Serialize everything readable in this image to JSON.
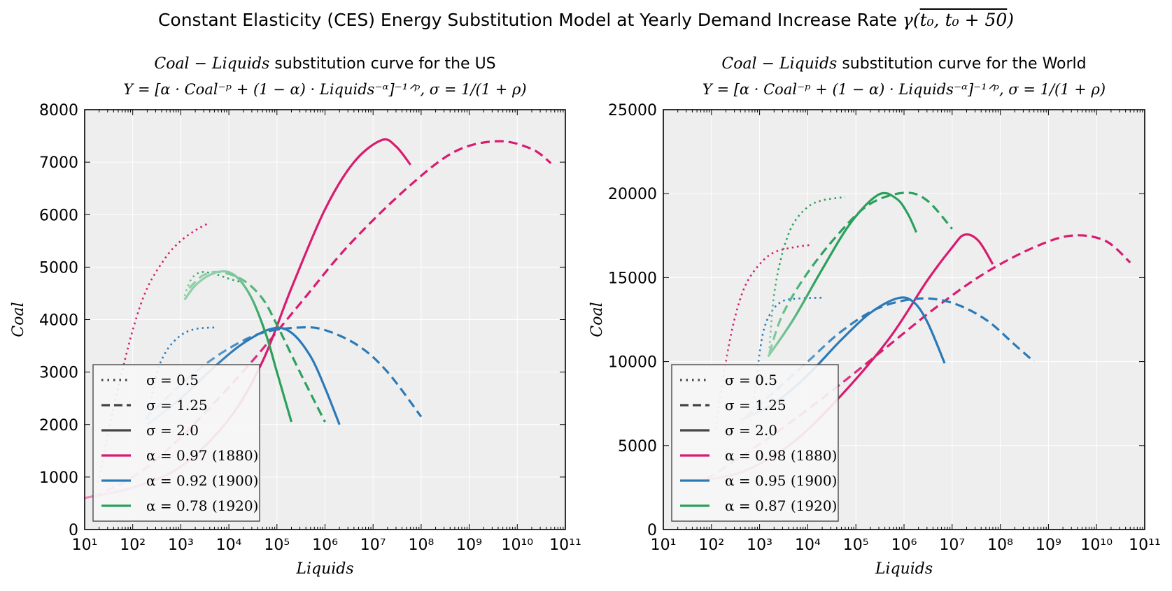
{
  "figure": {
    "suptitle_text": "Constant Elasticity (CES) Energy Substitution Model at Yearly Demand Increase Rate ",
    "suptitle_math": "γ(",
    "suptitle_math_over": "t₀, t₀ + 50",
    "suptitle_math_end": ")"
  },
  "colors": {
    "alpha_1880": "#d81b70",
    "alpha_1900": "#2a7ab8",
    "alpha_1920": "#2aa05c",
    "alpha_1880_light": "#ee8dbb",
    "alpha_1900_light": "#94c1e2",
    "alpha_1920_light": "#8fd0a8",
    "background": "#eeeeee"
  },
  "chart_data": [
    {
      "type": "line",
      "title_math": "Coal − Liquids",
      "title_text": " substitution curve for the US",
      "formula": "Y = [α · Coal⁻ᵖ + (1 − α) · Liquids⁻ᵅ]⁻¹ᐟᵖ, σ = 1/(1 + ρ)",
      "xlabel": "Liquids",
      "ylabel": "Coal",
      "xscale": "log",
      "xlim": [
        10,
        100000000000
      ],
      "ylim": [
        0,
        8000
      ],
      "xticks": [
        "10¹",
        "10²",
        "10³",
        "10⁴",
        "10⁵",
        "10⁶",
        "10⁷",
        "10⁸",
        "10⁹",
        "10¹⁰",
        "10¹¹"
      ],
      "yticks": [
        "0",
        "1000",
        "2000",
        "3000",
        "4000",
        "5000",
        "6000",
        "7000",
        "8000"
      ],
      "grid": true,
      "legend_position": "lower-left",
      "legend": [
        {
          "label": "σ = 0.5",
          "style": "dotted"
        },
        {
          "label": "σ = 1.25",
          "style": "dashed"
        },
        {
          "label": "σ = 2.0",
          "style": "solid"
        },
        {
          "label": "α = 0.97 (1880)",
          "color": "#d81b70"
        },
        {
          "label": "α = 0.92 (1900)",
          "color": "#2a7ab8"
        },
        {
          "label": "α = 0.78 (1920)",
          "color": "#2aa05c"
        }
      ],
      "series": [
        {
          "alpha": "1880",
          "sigma": "0.5",
          "style": "dotted",
          "points": [
            [
              14,
              620
            ],
            [
              20,
              1000
            ],
            [
              30,
              1800
            ],
            [
              50,
              2700
            ],
            [
              100,
              3800
            ],
            [
              200,
              4600
            ],
            [
              500,
              5200
            ],
            [
              1000,
              5500
            ],
            [
              2000,
              5700
            ],
            [
              4000,
              5850
            ]
          ]
        },
        {
          "alpha": "1880",
          "sigma": "1.25",
          "style": "dashed",
          "points": [
            [
              15,
              620
            ],
            [
              100,
              1000
            ],
            [
              500,
              1500
            ],
            [
              3000,
              2200
            ],
            [
              30000,
              3200
            ],
            [
              300000,
              4300
            ],
            [
              3000000,
              5400
            ],
            [
              50000000,
              6500
            ],
            [
              500000000,
              7200
            ],
            [
              4000000000,
              7400
            ],
            [
              20000000000,
              7250
            ],
            [
              50000000000,
              6980
            ]
          ]
        },
        {
          "alpha": "1880",
          "sigma": "2.0",
          "style": "solid",
          "points": [
            [
              10,
              600
            ],
            [
              100,
              800
            ],
            [
              1000,
              1200
            ],
            [
              10000,
              2100
            ],
            [
              50000,
              3200
            ],
            [
              200000,
              4600
            ],
            [
              1000000,
              6100
            ],
            [
              4000000,
              7000
            ],
            [
              15000000,
              7420
            ],
            [
              30000000,
              7300
            ],
            [
              60000000,
              6950
            ]
          ]
        },
        {
          "alpha": "1900",
          "sigma": "0.5",
          "style": "dotted",
          "points": [
            [
              200,
              2000
            ],
            [
              300,
              2900
            ],
            [
              500,
              3400
            ],
            [
              1000,
              3700
            ],
            [
              2000,
              3820
            ],
            [
              5000,
              3850
            ]
          ]
        },
        {
          "alpha": "1900",
          "sigma": "1.25",
          "style": "dashed",
          "points": [
            [
              180,
              2100
            ],
            [
              500,
              2500
            ],
            [
              2000,
              3000
            ],
            [
              10000,
              3450
            ],
            [
              50000,
              3750
            ],
            [
              300000,
              3850
            ],
            [
              1000000,
              3800
            ],
            [
              5000000,
              3500
            ],
            [
              20000000,
              3000
            ],
            [
              100000000,
              2150
            ]
          ]
        },
        {
          "alpha": "1900",
          "sigma": "2.0",
          "style": "solid",
          "points": [
            [
              200,
              2000
            ],
            [
              1000,
              2500
            ],
            [
              5000,
              3100
            ],
            [
              20000,
              3550
            ],
            [
              80000,
              3830
            ],
            [
              200000,
              3750
            ],
            [
              500000,
              3300
            ],
            [
              1000000,
              2700
            ],
            [
              2000000,
              2000
            ]
          ]
        },
        {
          "alpha": "1920",
          "sigma": "0.5",
          "style": "dotted",
          "points": [
            [
              1200,
              4450
            ],
            [
              1600,
              4750
            ],
            [
              2500,
              4900
            ],
            [
              5000,
              4870
            ],
            [
              10000,
              4780
            ],
            [
              20000,
              4700
            ]
          ]
        },
        {
          "alpha": "1920",
          "sigma": "1.25",
          "style": "dashed",
          "points": [
            [
              1500,
              4600
            ],
            [
              3000,
              4850
            ],
            [
              7000,
              4900
            ],
            [
              20000,
              4750
            ],
            [
              50000,
              4400
            ],
            [
              100000,
              3900
            ],
            [
              300000,
              3000
            ],
            [
              1000000,
              2050
            ]
          ]
        },
        {
          "alpha": "1920",
          "sigma": "2.0",
          "style": "solid",
          "points": [
            [
              1200,
              4380
            ],
            [
              2000,
              4650
            ],
            [
              4000,
              4850
            ],
            [
              8000,
              4920
            ],
            [
              15000,
              4800
            ],
            [
              30000,
              4400
            ],
            [
              60000,
              3700
            ],
            [
              100000,
              3000
            ],
            [
              200000,
              2050
            ]
          ]
        }
      ]
    },
    {
      "type": "line",
      "title_math": "Coal − Liquids",
      "title_text": " substitution curve for the World",
      "formula": "Y = [α · Coal⁻ᵖ + (1 − α) · Liquids⁻ᵅ]⁻¹ᐟᵖ, σ = 1/(1 + ρ)",
      "xlabel": "Liquids",
      "ylabel": "Coal",
      "xscale": "log",
      "xlim": [
        10,
        100000000000
      ],
      "ylim": [
        0,
        25000
      ],
      "xticks": [
        "10¹",
        "10²",
        "10³",
        "10⁴",
        "10⁵",
        "10⁶",
        "10⁷",
        "10⁸",
        "10⁹",
        "10¹⁰",
        "10¹¹"
      ],
      "yticks": [
        "0",
        "5000",
        "10000",
        "15000",
        "20000",
        "25000"
      ],
      "grid": true,
      "legend_position": "lower-left",
      "legend": [
        {
          "label": "σ = 0.5",
          "style": "dotted"
        },
        {
          "label": "σ = 1.25",
          "style": "dashed"
        },
        {
          "label": "σ = 2.0",
          "style": "solid"
        },
        {
          "label": "α = 0.98 (1880)",
          "color": "#d81b70"
        },
        {
          "label": "α = 0.95 (1900)",
          "color": "#2a7ab8"
        },
        {
          "label": "α = 0.87 (1920)",
          "color": "#2aa05c"
        }
      ],
      "series": [
        {
          "alpha": "1880",
          "sigma": "0.5",
          "style": "dotted",
          "points": [
            [
              120,
              6000
            ],
            [
              200,
              10000
            ],
            [
              300,
              12500
            ],
            [
              500,
              14500
            ],
            [
              1000,
              15800
            ],
            [
              2000,
              16500
            ],
            [
              5000,
              16800
            ],
            [
              12000,
              16950
            ]
          ]
        },
        {
          "alpha": "1880",
          "sigma": "1.25",
          "style": "dashed",
          "points": [
            [
              80,
              3000
            ],
            [
              500,
              4500
            ],
            [
              5000,
              6500
            ],
            [
              50000,
              8700
            ],
            [
              500000,
              11000
            ],
            [
              5000000,
              13300
            ],
            [
              50000000,
              15300
            ],
            [
              500000000,
              16800
            ],
            [
              3000000000,
              17500
            ],
            [
              15000000000,
              17200
            ],
            [
              50000000000,
              15900
            ]
          ]
        },
        {
          "alpha": "1880",
          "sigma": "2.0",
          "style": "solid",
          "points": [
            [
              60,
              2900
            ],
            [
              500,
              3500
            ],
            [
              5000,
              5200
            ],
            [
              50000,
              8000
            ],
            [
              500000,
              11400
            ],
            [
              3000000,
              14800
            ],
            [
              10000000,
              16800
            ],
            [
              18000000,
              17550
            ],
            [
              35000000,
              17200
            ],
            [
              70000000,
              15800
            ]
          ]
        },
        {
          "alpha": "1900",
          "sigma": "0.5",
          "style": "dotted",
          "points": [
            [
              700,
              6900
            ],
            [
              900,
              9500
            ],
            [
              1200,
              11800
            ],
            [
              1800,
              13000
            ],
            [
              3000,
              13600
            ],
            [
              6000,
              13750
            ],
            [
              20000,
              13800
            ]
          ]
        },
        {
          "alpha": "1900",
          "sigma": "1.25",
          "style": "dashed",
          "points": [
            [
              500,
              6700
            ],
            [
              2000,
              8200
            ],
            [
              10000,
              10000
            ],
            [
              50000,
              11800
            ],
            [
              300000,
              13200
            ],
            [
              2000000,
              13750
            ],
            [
              10000000,
              13500
            ],
            [
              50000000,
              12500
            ],
            [
              200000000,
              11000
            ],
            [
              500000000,
              10000
            ]
          ]
        },
        {
          "alpha": "1900",
          "sigma": "2.0",
          "style": "solid",
          "points": [
            [
              400,
              6500
            ],
            [
              2000,
              7500
            ],
            [
              10000,
              9200
            ],
            [
              50000,
              11300
            ],
            [
              200000,
              12900
            ],
            [
              700000,
              13750
            ],
            [
              1500000,
              13600
            ],
            [
              3000000,
              12400
            ],
            [
              7000000,
              9900
            ]
          ]
        },
        {
          "alpha": "1920",
          "sigma": "0.5",
          "style": "dotted",
          "points": [
            [
              1600,
              10800
            ],
            [
              2000,
              14000
            ],
            [
              3000,
              16500
            ],
            [
              5000,
              18200
            ],
            [
              10000,
              19200
            ],
            [
              20000,
              19600
            ],
            [
              60000,
              19800
            ]
          ]
        },
        {
          "alpha": "1920",
          "sigma": "1.25",
          "style": "dashed",
          "points": [
            [
              1600,
              10500
            ],
            [
              3000,
              12800
            ],
            [
              10000,
              15300
            ],
            [
              50000,
              17800
            ],
            [
              200000,
              19400
            ],
            [
              1000000,
              20050
            ],
            [
              3000000,
              19600
            ],
            [
              10000000,
              17900
            ]
          ]
        },
        {
          "alpha": "1920",
          "sigma": "2.0",
          "style": "solid",
          "points": [
            [
              1500,
              10300
            ],
            [
              5000,
              12500
            ],
            [
              20000,
              15500
            ],
            [
              80000,
              18300
            ],
            [
              300000,
              19950
            ],
            [
              700000,
              19700
            ],
            [
              1200000,
              18800
            ],
            [
              1800000,
              17700
            ]
          ]
        }
      ]
    }
  ]
}
